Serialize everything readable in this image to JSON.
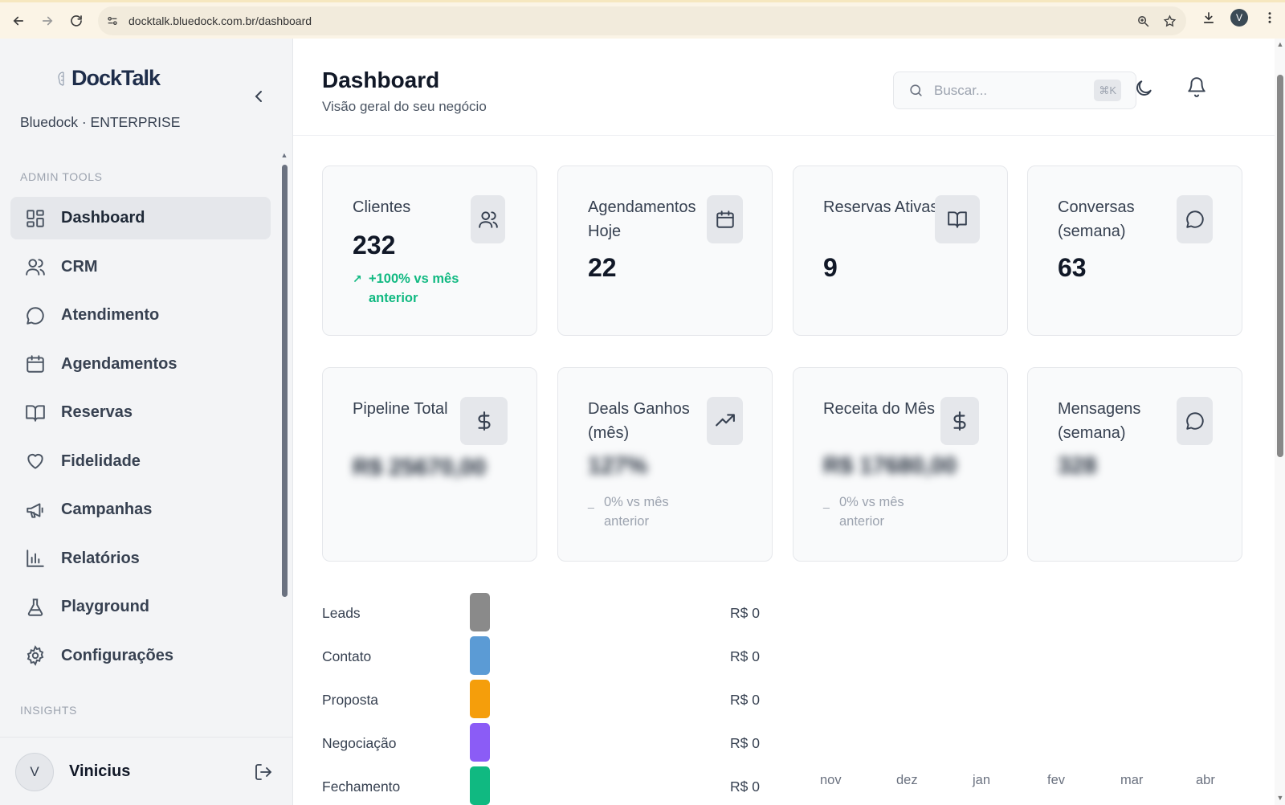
{
  "browser": {
    "url": "docktalk.bluedock.com.br/dashboard",
    "profile_initial": "V"
  },
  "sidebar": {
    "logo_text": "DockTalk",
    "workspace": "Bluedock · ENTERPRISE",
    "section_admin": "ADMIN TOOLS",
    "section_insights": "INSIGHTS",
    "items": [
      {
        "label": "Dashboard",
        "icon": "dashboard-icon",
        "active": true
      },
      {
        "label": "CRM",
        "icon": "users-icon"
      },
      {
        "label": "Atendimento",
        "icon": "chat-icon"
      },
      {
        "label": "Agendamentos",
        "icon": "calendar-icon"
      },
      {
        "label": "Reservas",
        "icon": "book-icon"
      },
      {
        "label": "Fidelidade",
        "icon": "heart-icon"
      },
      {
        "label": "Campanhas",
        "icon": "megaphone-icon"
      },
      {
        "label": "Relatórios",
        "icon": "bar-chart-icon"
      },
      {
        "label": "Playground",
        "icon": "flask-icon"
      },
      {
        "label": "Configurações",
        "icon": "gear-icon"
      }
    ],
    "user": {
      "initial": "V",
      "name": "Vinicius"
    }
  },
  "header": {
    "title": "Dashboard",
    "subtitle": "Visão geral do seu negócio",
    "search_placeholder": "Buscar...",
    "search_shortcut": "⌘K"
  },
  "stats": [
    {
      "label": "Clientes",
      "value": "232",
      "icon": "users-icon",
      "trend": "+100% vs mês anterior",
      "trend_dir": "up"
    },
    {
      "label": "Agendamentos Hoje",
      "value": "22",
      "icon": "calendar-icon"
    },
    {
      "label": "Reservas Ativas",
      "value": "9",
      "icon": "book-icon"
    },
    {
      "label": "Conversas (semana)",
      "value": "63",
      "icon": "chat-icon"
    },
    {
      "label": "Pipeline Total",
      "value": "R$ 25670,00",
      "icon": "dollar-icon",
      "blurred": true
    },
    {
      "label": "Deals Ganhos (mês)",
      "value": "127%",
      "icon": "trending-up-icon",
      "blurred": true,
      "trend": "0% vs mês anterior",
      "trend_dir": "flat"
    },
    {
      "label": "Receita do Mês",
      "value": "R$ 17680,00",
      "icon": "dollar-icon",
      "blurred": true,
      "trend": "0% vs mês anterior",
      "trend_dir": "flat"
    },
    {
      "label": "Mensagens (semana)",
      "value": "328",
      "icon": "chat-icon",
      "blurred": true
    }
  ],
  "funnel": [
    {
      "label": "Leads",
      "value": "R$ 0",
      "color": "#8a8a8a"
    },
    {
      "label": "Contato",
      "value": "R$ 0",
      "color": "#5b9bd5"
    },
    {
      "label": "Proposta",
      "value": "R$ 0",
      "color": "#f59e0b"
    },
    {
      "label": "Negociação",
      "value": "R$ 0",
      "color": "#8b5cf6"
    },
    {
      "label": "Fechamento",
      "value": "R$ 0",
      "color": "#10b981"
    }
  ],
  "months": [
    "nov",
    "dez",
    "jan",
    "fev",
    "mar",
    "abr"
  ]
}
